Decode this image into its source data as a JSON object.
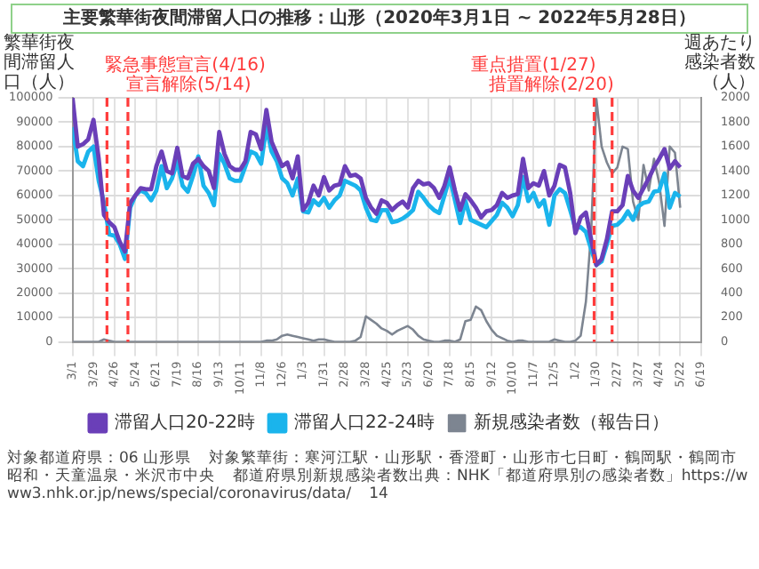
{
  "chart_data": {
    "type": "line",
    "title": "主要繁華街夜間滞留人口の推移：山形（2020年3月1日 ~ 2022年5月28日）",
    "ylabel": "繁華街夜間滞留人口（人）",
    "y2label": "週あたり感染者数（人）",
    "x": [
      "2020-03-01",
      "2020-03-08",
      "2020-03-15",
      "2020-03-22",
      "2020-03-29",
      "2020-04-05",
      "2020-04-12",
      "2020-04-19",
      "2020-04-26",
      "2020-05-03",
      "2020-05-10",
      "2020-05-17",
      "2020-05-24",
      "2020-05-31",
      "2020-06-07",
      "2020-06-14",
      "2020-06-21",
      "2020-06-28",
      "2020-07-05",
      "2020-07-12",
      "2020-07-19",
      "2020-07-26",
      "2020-08-02",
      "2020-08-09",
      "2020-08-16",
      "2020-08-23",
      "2020-08-30",
      "2020-09-06",
      "2020-09-13",
      "2020-09-20",
      "2020-09-27",
      "2020-10-04",
      "2020-10-11",
      "2020-10-18",
      "2020-10-25",
      "2020-11-01",
      "2020-11-08",
      "2020-11-15",
      "2020-11-22",
      "2020-11-29",
      "2020-12-06",
      "2020-12-13",
      "2020-12-20",
      "2020-12-27",
      "2021-01-03",
      "2021-01-10",
      "2021-01-17",
      "2021-01-24",
      "2021-01-31",
      "2021-02-07",
      "2021-02-14",
      "2021-02-21",
      "2021-02-28",
      "2021-03-07",
      "2021-03-14",
      "2021-03-21",
      "2021-03-28",
      "2021-04-04",
      "2021-04-11",
      "2021-04-18",
      "2021-04-25",
      "2021-05-02",
      "2021-05-09",
      "2021-05-16",
      "2021-05-23",
      "2021-05-30",
      "2021-06-06",
      "2021-06-13",
      "2021-06-20",
      "2021-06-27",
      "2021-07-04",
      "2021-07-11",
      "2021-07-18",
      "2021-07-25",
      "2021-08-01",
      "2021-08-08",
      "2021-08-15",
      "2021-08-22",
      "2021-08-29",
      "2021-09-05",
      "2021-09-12",
      "2021-09-19",
      "2021-09-26",
      "2021-10-03",
      "2021-10-10",
      "2021-10-17",
      "2021-10-24",
      "2021-10-31",
      "2021-11-07",
      "2021-11-14",
      "2021-11-21",
      "2021-11-28",
      "2021-12-05",
      "2021-12-12",
      "2021-12-19",
      "2021-12-26",
      "2022-01-02",
      "2022-01-09",
      "2022-01-16",
      "2022-01-23",
      "2022-01-30",
      "2022-02-06",
      "2022-02-13",
      "2022-02-20",
      "2022-02-27",
      "2022-03-06",
      "2022-03-13",
      "2022-03-20",
      "2022-03-27",
      "2022-04-03",
      "2022-04-10",
      "2022-04-17",
      "2022-04-24",
      "2022-05-01",
      "2022-05-08",
      "2022-05-15",
      "2022-05-22"
    ],
    "series": [
      {
        "name": "滞留人口20-22時",
        "color": "#6a3fb8",
        "values": [
          100000,
          80000,
          81000,
          83000,
          91000,
          75000,
          52000,
          49000,
          47000,
          41000,
          37000,
          57000,
          60000,
          63000,
          62500,
          62500,
          72000,
          78000,
          70000,
          69000,
          79500,
          68000,
          67000,
          73000,
          75000,
          72000,
          70000,
          63000,
          86000,
          77000,
          72000,
          70500,
          70500,
          74000,
          86000,
          85000,
          79000,
          95000,
          82000,
          77000,
          72000,
          73500,
          67000,
          76000,
          54000,
          57000,
          64000,
          60000,
          67500,
          62000,
          64000,
          64500,
          72000,
          68000,
          68500,
          67000,
          59000,
          55000,
          52500,
          58000,
          57000,
          54000,
          56000,
          57500,
          55000,
          63000,
          66000,
          64500,
          65000,
          63000,
          59000,
          64000,
          71500,
          62000,
          54000,
          60500,
          58000,
          55000,
          51000,
          53500,
          54000,
          56000,
          61000,
          59000,
          60000,
          60500,
          75000,
          63000,
          65000,
          64000,
          70000,
          60000,
          64000,
          72500,
          71500,
          61000,
          44500,
          51000,
          53000,
          42000,
          31500,
          34000,
          42000,
          53500,
          53500,
          56000,
          68000,
          62000,
          59000,
          63000,
          67000,
          71500,
          75000,
          79000,
          71000,
          74000,
          71500
        ]
      },
      {
        "name": "滞留人口22-24時",
        "color": "#1ab4ec",
        "values": [
          88000,
          74000,
          72000,
          78000,
          80000,
          66000,
          57000,
          44000,
          43500,
          40000,
          34000,
          55000,
          60000,
          62000,
          61000,
          58000,
          62000,
          72000,
          63000,
          67000,
          74000,
          64000,
          61500,
          68000,
          76000,
          64000,
          61000,
          56000,
          77000,
          73000,
          67000,
          66000,
          66000,
          72000,
          78000,
          77000,
          73000,
          88000,
          78000,
          74000,
          67000,
          65000,
          60000,
          67000,
          53500,
          53000,
          58000,
          56000,
          59000,
          55000,
          58000,
          60000,
          66000,
          65000,
          64000,
          62000,
          55000,
          50000,
          49500,
          54000,
          54000,
          49000,
          49500,
          50500,
          52000,
          54000,
          61500,
          59000,
          56000,
          54000,
          52800,
          60000,
          67500,
          58000,
          48700,
          57700,
          50000,
          49000,
          48000,
          47000,
          49500,
          52000,
          57000,
          55000,
          51500,
          56000,
          67500,
          57700,
          61000,
          55500,
          58000,
          48000,
          60000,
          62600,
          61000,
          54000,
          46500,
          47000,
          45000,
          38000,
          31500,
          33000,
          40000,
          47500,
          48000,
          50000,
          53500,
          50000,
          55500,
          57000,
          57500,
          61500,
          62000,
          69000,
          55000,
          61000,
          59500
        ]
      },
      {
        "name": "新規感染者数（報告日）",
        "color": "#7d8591",
        "axis": "y2",
        "values": [
          0,
          0,
          0,
          0,
          0,
          0,
          20,
          10,
          0,
          0,
          0,
          0,
          0,
          0,
          0,
          0,
          0,
          0,
          0,
          0,
          0,
          0,
          0,
          0,
          0,
          0,
          0,
          0,
          0,
          0,
          0,
          0,
          0,
          0,
          0,
          0,
          0,
          10,
          10,
          20,
          50,
          60,
          50,
          40,
          30,
          20,
          10,
          20,
          20,
          10,
          0,
          0,
          0,
          0,
          10,
          40,
          210,
          180,
          150,
          110,
          90,
          60,
          90,
          110,
          130,
          100,
          50,
          20,
          10,
          0,
          0,
          10,
          10,
          0,
          20,
          170,
          180,
          290,
          260,
          170,
          100,
          50,
          30,
          10,
          0,
          10,
          10,
          0,
          0,
          0,
          0,
          0,
          20,
          10,
          0,
          0,
          10,
          50,
          330,
          900,
          1990,
          1600,
          1470,
          1380,
          1430,
          1600,
          1580,
          1150,
          1000,
          1450,
          1240,
          1500,
          1300,
          950,
          1600,
          1550,
          1100
        ]
      }
    ],
    "xlim": [
      "2020-03-01",
      "2022-06-19"
    ],
    "xticks": [
      {
        "value": "2020-03-01",
        "label": "3/1"
      },
      {
        "value": "2020-03-29",
        "label": "3/29"
      },
      {
        "value": "2020-04-26",
        "label": "4/26"
      },
      {
        "value": "2020-05-24",
        "label": "5/24"
      },
      {
        "value": "2020-06-21",
        "label": "6/21"
      },
      {
        "value": "2020-07-19",
        "label": "7/19"
      },
      {
        "value": "2020-08-16",
        "label": "8/16"
      },
      {
        "value": "2020-09-13",
        "label": "9/13"
      },
      {
        "value": "2020-10-11",
        "label": "10/11"
      },
      {
        "value": "2020-11-08",
        "label": "11/8"
      },
      {
        "value": "2020-12-06",
        "label": "12/6"
      },
      {
        "value": "2021-01-03",
        "label": "1/3"
      },
      {
        "value": "2021-01-31",
        "label": "1/31"
      },
      {
        "value": "2021-02-28",
        "label": "2/28"
      },
      {
        "value": "2021-03-28",
        "label": "3/28"
      },
      {
        "value": "2021-04-25",
        "label": "4/25"
      },
      {
        "value": "2021-05-23",
        "label": "5/23"
      },
      {
        "value": "2021-06-20",
        "label": "6/20"
      },
      {
        "value": "2021-07-18",
        "label": "7/18"
      },
      {
        "value": "2021-08-15",
        "label": "8/15"
      },
      {
        "value": "2021-09-12",
        "label": "9/12"
      },
      {
        "value": "2021-10-10",
        "label": "10/10"
      },
      {
        "value": "2021-11-07",
        "label": "11/7"
      },
      {
        "value": "2021-12-05",
        "label": "12/5"
      },
      {
        "value": "2022-01-02",
        "label": "1/2"
      },
      {
        "value": "2022-01-30",
        "label": "1/30"
      },
      {
        "value": "2022-02-27",
        "label": "2/27"
      },
      {
        "value": "2022-03-27",
        "label": "3/27"
      },
      {
        "value": "2022-04-24",
        "label": "4/24"
      },
      {
        "value": "2022-05-22",
        "label": "5/22"
      },
      {
        "value": "2022-06-19",
        "label": "6/19"
      }
    ],
    "ylim": [
      0,
      100000
    ],
    "yticks": [
      0,
      10000,
      20000,
      30000,
      40000,
      50000,
      60000,
      70000,
      80000,
      90000,
      100000
    ],
    "y2lim": [
      0,
      2000
    ],
    "y2ticks": [
      0,
      200,
      400,
      600,
      800,
      1000,
      1200,
      1400,
      1600,
      1800,
      2000
    ],
    "ref_lines": [
      {
        "axis": "x",
        "value": "2020-04-16",
        "label": "緊急事態宣言(4/16)",
        "color": "#ff3b3b",
        "line_style": "dashed"
      },
      {
        "axis": "x",
        "value": "2020-05-14",
        "label": "宣言解除(5/14)",
        "color": "#ff3b3b",
        "line_style": "dashed"
      },
      {
        "axis": "x",
        "value": "2022-01-27",
        "label": "重点措置(1/27)",
        "color": "#ff3b3b",
        "line_style": "dashed"
      },
      {
        "axis": "x",
        "value": "2022-02-20",
        "label": "措置解除(2/20)",
        "color": "#ff3b3b",
        "line_style": "dashed"
      }
    ],
    "grid": true,
    "legend": "bottom",
    "marker": "none",
    "annotations": [
      "対象都道府県：06 山形県",
      "対象繁華街：寒河江駅・山形駅・香澄町・山形市七日町・鶴岡駅・鶴岡市昭和・天童温泉・米沢市中央",
      "都道府県別新規感染者数出典：NHK「都道府県別の感染者数」https://www3.nhk.or.jp/news/special/coronavirus/data/",
      "14"
    ]
  }
}
